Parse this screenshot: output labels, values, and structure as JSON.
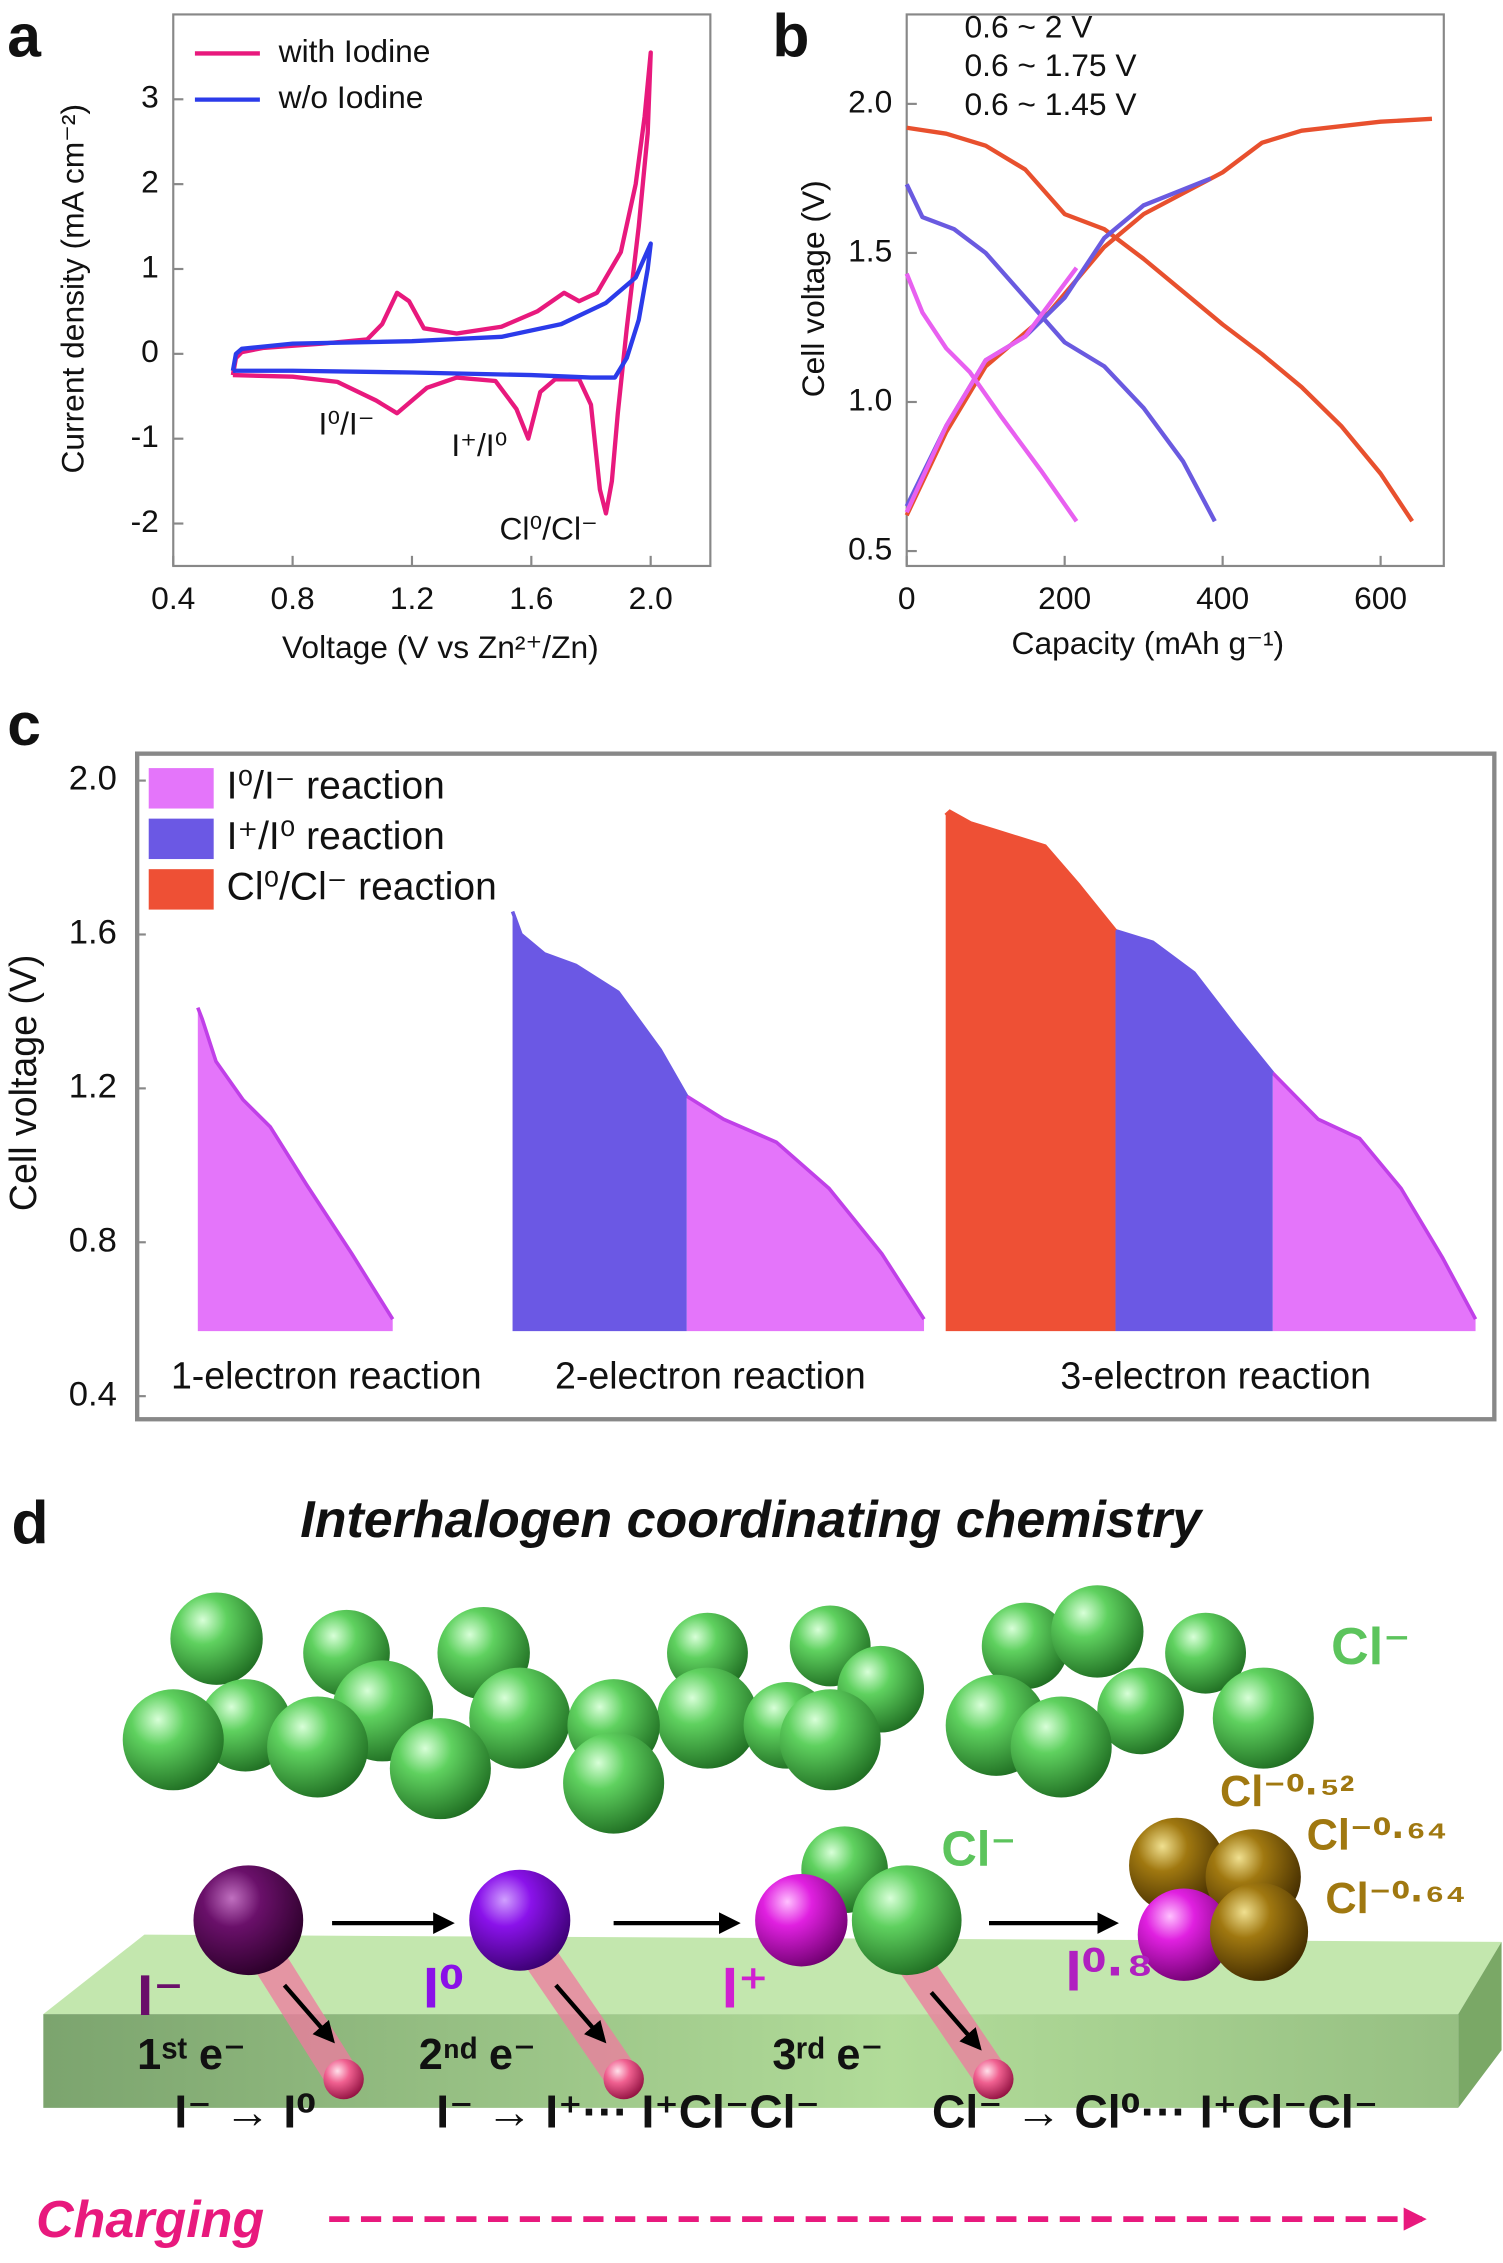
{
  "chart_data": [
    {
      "type": "line",
      "panel": "a",
      "xlabel": "Voltage (V vs Zn²⁺/Zn)",
      "ylabel": "Current density (mA cm⁻²)",
      "xlim": [
        0.4,
        2.2
      ],
      "ylim": [
        -2.5,
        4
      ],
      "xticks": [
        0.4,
        0.8,
        1.2,
        1.6,
        {
          "value": 2,
          "label": "2.0"
        }
      ],
      "yticks": [
        -2,
        -1,
        0,
        1,
        2,
        3
      ],
      "legend": "upper left",
      "series": [
        {
          "name": "with Iodine",
          "color": "#e8197d",
          "x": [
            0.6,
            0.61,
            0.63,
            0.7,
            0.9,
            1.05,
            1.1,
            1.15,
            1.19,
            1.24,
            1.35,
            1.5,
            1.62,
            1.71,
            1.76,
            1.82,
            1.9,
            1.95,
            1.98,
            2.0,
            1.99,
            1.96,
            1.92,
            1.89,
            1.87,
            1.85,
            1.83,
            1.8,
            1.76,
            1.68,
            1.63,
            1.59,
            1.55,
            1.48,
            1.35,
            1.25,
            1.15,
            1.08,
            0.95,
            0.8,
            0.6
          ],
          "values": [
            -0.25,
            -0.05,
            0.02,
            0.07,
            0.12,
            0.17,
            0.35,
            0.72,
            0.62,
            0.3,
            0.24,
            0.32,
            0.5,
            0.72,
            0.62,
            0.72,
            1.2,
            2.0,
            2.8,
            3.55,
            2.6,
            1.5,
            0.3,
            -0.7,
            -1.5,
            -1.88,
            -1.6,
            -0.6,
            -0.3,
            -0.3,
            -0.45,
            -1.0,
            -0.65,
            -0.32,
            -0.28,
            -0.4,
            -0.7,
            -0.55,
            -0.33,
            -0.27,
            -0.25
          ]
        },
        {
          "name": "w/o Iodine",
          "color": "#2b3bea",
          "x": [
            0.6,
            0.61,
            0.63,
            0.8,
            1.2,
            1.5,
            1.7,
            1.85,
            1.95,
            2.0,
            1.99,
            1.96,
            1.92,
            1.88,
            1.8,
            1.6,
            1.2,
            0.8,
            0.6
          ],
          "values": [
            -0.2,
            0.0,
            0.06,
            0.12,
            0.15,
            0.2,
            0.35,
            0.6,
            0.9,
            1.3,
            1.0,
            0.4,
            -0.05,
            -0.28,
            -0.28,
            -0.25,
            -0.22,
            -0.2,
            -0.2
          ]
        }
      ],
      "annotations": [
        "I⁰/I⁻",
        "I⁺/I⁰",
        "Cl⁰/Cl⁻"
      ]
    },
    {
      "type": "line",
      "panel": "b",
      "xlabel": "Capacity (mAh g⁻¹)",
      "ylabel": "Cell voltage (V)",
      "xlim": [
        0,
        680
      ],
      "ylim": [
        0.45,
        2.3
      ],
      "xticks": [
        0,
        200,
        400,
        600
      ],
      "yticks": [
        0.5,
        {
          "value": 1,
          "label": "1.0"
        },
        1.5,
        {
          "value": 2,
          "label": "2.0"
        }
      ],
      "legend": "upper left",
      "series": [
        {
          "name": "0.6 ~ 2 V",
          "color": "#e8502e",
          "x": [
            0,
            50,
            100,
            180,
            250,
            300,
            400,
            450,
            500,
            600,
            665,
            null,
            0,
            50,
            100,
            150,
            200,
            250,
            300,
            350,
            400,
            450,
            500,
            550,
            600,
            640
          ],
          "values": [
            0.62,
            0.9,
            1.12,
            1.3,
            1.52,
            1.63,
            1.77,
            1.87,
            1.91,
            1.94,
            1.95,
            null,
            1.92,
            1.9,
            1.86,
            1.78,
            1.63,
            1.58,
            1.48,
            1.37,
            1.26,
            1.16,
            1.05,
            0.92,
            0.76,
            0.6
          ]
        },
        {
          "name": "0.6 ~ 1.75 V",
          "color": "#6a5ae0",
          "x": [
            0,
            50,
            100,
            150,
            200,
            250,
            300,
            385,
            null,
            0,
            20,
            60,
            100,
            150,
            200,
            250,
            300,
            350,
            390
          ],
          "values": [
            0.65,
            0.92,
            1.14,
            1.22,
            1.35,
            1.55,
            1.66,
            1.75,
            null,
            1.73,
            1.62,
            1.58,
            1.5,
            1.35,
            1.2,
            1.12,
            0.98,
            0.8,
            0.6
          ]
        },
        {
          "name": "0.6 ~ 1.45 V",
          "color": "#e860f0",
          "x": [
            0,
            50,
            100,
            150,
            215,
            null,
            0,
            20,
            50,
            80,
            120,
            170,
            215
          ],
          "values": [
            0.63,
            0.92,
            1.14,
            1.22,
            1.45,
            null,
            1.43,
            1.3,
            1.18,
            1.1,
            0.95,
            0.77,
            0.6
          ]
        }
      ]
    },
    {
      "type": "area",
      "panel": "c",
      "ylabel": "Cell voltage (V)",
      "ylim": [
        0.34,
        2.07
      ],
      "yticks": [
        0.4,
        0.8,
        1.2,
        1.6,
        {
          "value": 2,
          "label": "2.0"
        }
      ],
      "legend": "upper left",
      "categories": [
        "1-electron reaction",
        "2-electron reaction",
        "3-electron reaction"
      ],
      "series": [
        {
          "name": "I⁰/I⁻ reaction",
          "color": "#e475fa",
          "outline": "#c040e8",
          "x": [
            [
              0,
              5,
              20,
              50,
              80,
              120,
              170,
              215
            ],
            [
              165,
              200,
              250,
              300,
              350,
              390
            ],
            [
              395,
              450,
              500,
              550,
              600,
              640
            ]
          ],
          "values": [
            [
              1.41,
              1.38,
              1.27,
              1.17,
              1.1,
              0.95,
              0.77,
              0.6
            ],
            [
              1.18,
              1.12,
              1.06,
              0.94,
              0.77,
              0.6
            ],
            [
              1.24,
              1.12,
              1.07,
              0.94,
              0.76,
              0.6
            ]
          ]
        },
        {
          "name": "I⁺/I⁰ reaction",
          "color": "#6b58e4",
          "outline": "#6b58e4",
          "x": [
            [],
            [
              0,
              8,
              30,
              60,
              100,
              140,
              165
            ],
            [
              205,
              250,
              300,
              350,
              395
            ]
          ],
          "values": [
            [],
            [
              1.66,
              1.6,
              1.55,
              1.52,
              1.45,
              1.3,
              1.18
            ],
            [
              1.61,
              1.58,
              1.5,
              1.36,
              1.24
            ]
          ]
        },
        {
          "name": "Cl⁰/Cl⁻ reaction",
          "color": "#ee5035",
          "outline": "#ee5035",
          "x": [
            [],
            [],
            [
              0,
              5,
              30,
              60,
              120,
              160,
              205
            ]
          ],
          "values": [
            [],
            [],
            [
              1.91,
              1.92,
              1.89,
              1.87,
              1.83,
              1.73,
              1.61
            ]
          ]
        }
      ]
    }
  ],
  "diagram": {
    "panel": "d",
    "title": "Interhalogen coordinating chemistry",
    "chloride_labels": [
      "Cl⁻",
      "Cl⁻"
    ],
    "charge_labels": [
      "Cl⁻⁰·⁵²",
      "Cl⁻⁰·⁶⁴",
      "Cl⁻⁰·⁶⁴"
    ],
    "iodine_labels": [
      "I⁻",
      "I⁰",
      "I⁺",
      "I⁰·⁸"
    ],
    "electron_labels": [
      "1ˢᵗ e⁻",
      "2ⁿᵈ e⁻",
      "3ʳᵈ e⁻"
    ],
    "equations": [
      "I⁻ → I⁰",
      "I⁻ → I⁺··· I⁺Cl⁻Cl⁻",
      "Cl⁻ → Cl⁰··· I⁺Cl⁻Cl⁻"
    ],
    "process": "Charging"
  }
}
